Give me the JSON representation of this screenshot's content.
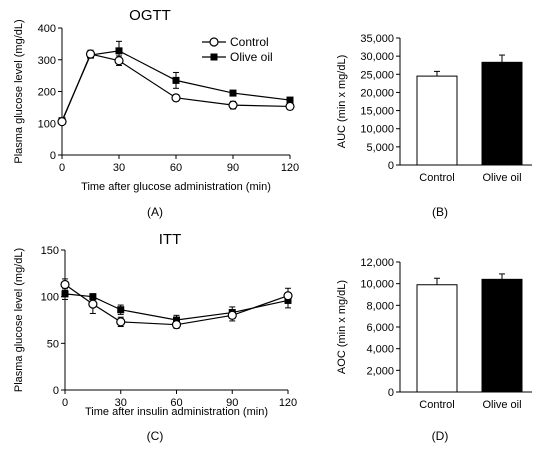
{
  "figure": {
    "panels": [
      {
        "id": "A",
        "panel_label": "(A)",
        "type": "line",
        "title": "OGTT",
        "xlabel": "Time after glucose administration (min)",
        "ylabel": "Plasma glucose level (mg/dL)",
        "xlim": [
          0,
          120
        ],
        "ylim": [
          0,
          400
        ],
        "xticks": [
          0,
          30,
          60,
          90,
          120
        ],
        "yticks": [
          0,
          100,
          200,
          300,
          400
        ],
        "x": [
          0,
          15,
          30,
          60,
          90,
          120
        ],
        "legend": "top-right",
        "series": [
          {
            "name": "Control",
            "marker": "open-circle",
            "values": [
              105,
              318,
              297,
              180,
              157,
              153
            ],
            "errors": [
              6,
              12,
              15,
              10,
              12,
              10
            ]
          },
          {
            "name": "Olive oil",
            "marker": "filled-square",
            "values": [
              108,
              315,
              328,
              235,
              195,
              173
            ],
            "errors": [
              6,
              10,
              30,
              25,
              8,
              8
            ]
          }
        ]
      },
      {
        "id": "B",
        "panel_label": "(B)",
        "type": "bar",
        "ylabel": "AUC (min x mg/dL)",
        "ylim": [
          0,
          35000
        ],
        "yticks": [
          0,
          5000,
          10000,
          15000,
          20000,
          25000,
          30000,
          35000
        ],
        "ytick_labels": [
          "0",
          "5,000",
          "10,000",
          "15,000",
          "20,000",
          "25,000",
          "30,000",
          "35,000"
        ],
        "categories": [
          "Control",
          "Olive oil"
        ],
        "values": [
          24500,
          28300
        ],
        "errors": [
          1300,
          2000
        ],
        "fills": [
          "#ffffff",
          "#000000"
        ]
      },
      {
        "id": "C",
        "panel_label": "(C)",
        "type": "line",
        "title": "ITT",
        "xlabel": "Time after insulin administration (min)",
        "ylabel": "Plasma glucose level (mg/dL)",
        "xlim": [
          0,
          120
        ],
        "ylim": [
          0,
          150
        ],
        "xticks": [
          0,
          30,
          60,
          90,
          120
        ],
        "yticks": [
          0,
          50,
          100,
          150
        ],
        "x": [
          0,
          15,
          30,
          60,
          90,
          120
        ],
        "series": [
          {
            "name": "Control",
            "marker": "open-circle",
            "values": [
              113,
              92,
              73,
              70,
              80,
              101
            ],
            "errors": [
              6,
              10,
              5,
              4,
              6,
              8
            ]
          },
          {
            "name": "Olive oil",
            "marker": "filled-square",
            "values": [
              103,
              100,
              86,
              75,
              83,
              96
            ],
            "errors": [
              6,
              3,
              5,
              5,
              6,
              8
            ]
          }
        ]
      },
      {
        "id": "D",
        "panel_label": "(D)",
        "type": "bar",
        "ylabel": "AOC (min x mg/dL)",
        "ylim": [
          0,
          12000
        ],
        "yticks": [
          0,
          2000,
          4000,
          6000,
          8000,
          10000,
          12000
        ],
        "ytick_labels": [
          "0",
          "2,000",
          "4,000",
          "6,000",
          "8,000",
          "10,000",
          "12,000"
        ],
        "categories": [
          "Control",
          "Olive oil"
        ],
        "values": [
          9900,
          10400
        ],
        "errors": [
          600,
          500
        ],
        "fills": [
          "#ffffff",
          "#000000"
        ]
      }
    ]
  }
}
